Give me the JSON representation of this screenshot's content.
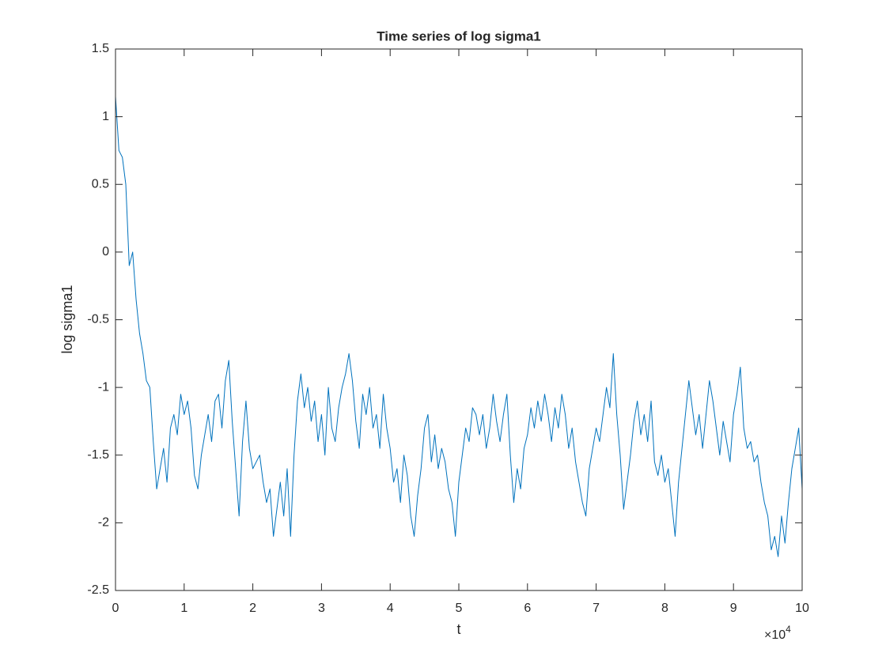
{
  "chart_data": {
    "type": "line",
    "title": "Time series of log sigma1",
    "x_label": "t",
    "y_label": "log sigma1",
    "x_multiplier": "×10",
    "x_multiplier_exponent": "4",
    "xlim": [
      0,
      10
    ],
    "xticks": [
      0,
      1,
      2,
      3,
      4,
      5,
      6,
      7,
      8,
      9,
      10
    ],
    "ylim": [
      -2.5,
      1.5
    ],
    "yticks": [
      -2.5,
      -2,
      -1.5,
      -1,
      -0.5,
      0,
      0.5,
      1,
      1.5
    ],
    "box": true,
    "x": [
      0,
      0.05,
      0.1,
      0.15,
      0.2,
      0.25,
      0.3,
      0.35,
      0.4,
      0.45,
      0.5,
      0.55,
      0.6,
      0.65,
      0.7,
      0.75,
      0.8,
      0.85,
      0.9,
      0.95,
      1,
      1.05,
      1.1,
      1.15,
      1.2,
      1.25,
      1.3,
      1.35,
      1.4,
      1.45,
      1.5,
      1.55,
      1.6,
      1.65,
      1.7,
      1.75,
      1.8,
      1.85,
      1.9,
      1.95,
      2,
      2.05,
      2.1,
      2.15,
      2.2,
      2.25,
      2.3,
      2.35,
      2.4,
      2.45,
      2.5,
      2.55,
      2.6,
      2.65,
      2.7,
      2.75,
      2.8,
      2.85,
      2.9,
      2.95,
      3,
      3.05,
      3.1,
      3.15,
      3.2,
      3.25,
      3.3,
      3.35,
      3.4,
      3.45,
      3.5,
      3.55,
      3.6,
      3.65,
      3.7,
      3.75,
      3.8,
      3.85,
      3.9,
      3.95,
      4,
      4.05,
      4.1,
      4.15,
      4.2,
      4.25,
      4.3,
      4.35,
      4.4,
      4.45,
      4.5,
      4.55,
      4.6,
      4.65,
      4.7,
      4.75,
      4.8,
      4.85,
      4.9,
      4.95,
      5,
      5.05,
      5.1,
      5.15,
      5.2,
      5.25,
      5.3,
      5.35,
      5.4,
      5.45,
      5.5,
      5.55,
      5.6,
      5.65,
      5.7,
      5.75,
      5.8,
      5.85,
      5.9,
      5.95,
      6,
      6.05,
      6.1,
      6.15,
      6.2,
      6.25,
      6.3,
      6.35,
      6.4,
      6.45,
      6.5,
      6.55,
      6.6,
      6.65,
      6.7,
      6.75,
      6.8,
      6.85,
      6.9,
      6.95,
      7,
      7.05,
      7.1,
      7.15,
      7.2,
      7.25,
      7.3,
      7.35,
      7.4,
      7.45,
      7.5,
      7.55,
      7.6,
      7.65,
      7.7,
      7.75,
      7.8,
      7.85,
      7.9,
      7.95,
      8,
      8.05,
      8.1,
      8.15,
      8.2,
      8.25,
      8.3,
      8.35,
      8.4,
      8.45,
      8.5,
      8.55,
      8.6,
      8.65,
      8.7,
      8.75,
      8.8,
      8.85,
      8.9,
      8.95,
      9,
      9.05,
      9.1,
      9.15,
      9.2,
      9.25,
      9.3,
      9.35,
      9.4,
      9.45,
      9.5,
      9.55,
      9.6,
      9.65,
      9.7,
      9.75,
      9.8,
      9.85,
      9.9,
      9.95,
      10
    ],
    "series": [
      {
        "color": "#0072bd",
        "values": [
          1.15,
          0.75,
          0.7,
          0.5,
          -0.1,
          0.0,
          -0.35,
          -0.6,
          -0.75,
          -0.95,
          -1.0,
          -1.4,
          -1.75,
          -1.6,
          -1.45,
          -1.7,
          -1.3,
          -1.2,
          -1.35,
          -1.05,
          -1.2,
          -1.1,
          -1.3,
          -1.65,
          -1.75,
          -1.5,
          -1.35,
          -1.2,
          -1.4,
          -1.1,
          -1.05,
          -1.3,
          -0.95,
          -0.8,
          -1.25,
          -1.6,
          -1.95,
          -1.4,
          -1.1,
          -1.45,
          -1.6,
          -1.55,
          -1.5,
          -1.7,
          -1.85,
          -1.75,
          -2.1,
          -1.9,
          -1.7,
          -1.95,
          -1.6,
          -2.1,
          -1.5,
          -1.1,
          -0.9,
          -1.15,
          -1.0,
          -1.25,
          -1.1,
          -1.4,
          -1.2,
          -1.5,
          -1.0,
          -1.3,
          -1.4,
          -1.15,
          -1.0,
          -0.9,
          -0.75,
          -0.95,
          -1.25,
          -1.45,
          -1.05,
          -1.2,
          -1.0,
          -1.3,
          -1.2,
          -1.45,
          -1.05,
          -1.3,
          -1.45,
          -1.7,
          -1.6,
          -1.85,
          -1.5,
          -1.65,
          -1.95,
          -2.1,
          -1.8,
          -1.6,
          -1.3,
          -1.2,
          -1.55,
          -1.35,
          -1.6,
          -1.45,
          -1.55,
          -1.75,
          -1.85,
          -2.1,
          -1.7,
          -1.5,
          -1.3,
          -1.4,
          -1.15,
          -1.2,
          -1.35,
          -1.2,
          -1.45,
          -1.3,
          -1.05,
          -1.25,
          -1.4,
          -1.2,
          -1.05,
          -1.5,
          -1.85,
          -1.6,
          -1.75,
          -1.45,
          -1.35,
          -1.15,
          -1.3,
          -1.1,
          -1.25,
          -1.05,
          -1.2,
          -1.4,
          -1.15,
          -1.3,
          -1.05,
          -1.2,
          -1.45,
          -1.3,
          -1.55,
          -1.7,
          -1.85,
          -1.95,
          -1.6,
          -1.45,
          -1.3,
          -1.4,
          -1.2,
          -1.0,
          -1.15,
          -0.75,
          -1.2,
          -1.5,
          -1.9,
          -1.7,
          -1.5,
          -1.25,
          -1.1,
          -1.35,
          -1.2,
          -1.4,
          -1.1,
          -1.55,
          -1.65,
          -1.5,
          -1.7,
          -1.6,
          -1.85,
          -2.1,
          -1.7,
          -1.45,
          -1.2,
          -0.95,
          -1.15,
          -1.35,
          -1.2,
          -1.45,
          -1.2,
          -0.95,
          -1.1,
          -1.3,
          -1.5,
          -1.25,
          -1.4,
          -1.55,
          -1.2,
          -1.05,
          -0.85,
          -1.3,
          -1.45,
          -1.4,
          -1.55,
          -1.5,
          -1.7,
          -1.85,
          -1.95,
          -2.2,
          -2.1,
          -2.25,
          -1.95,
          -2.15,
          -1.85,
          -1.6,
          -1.45,
          -1.3,
          -1.75
        ]
      }
    ]
  }
}
